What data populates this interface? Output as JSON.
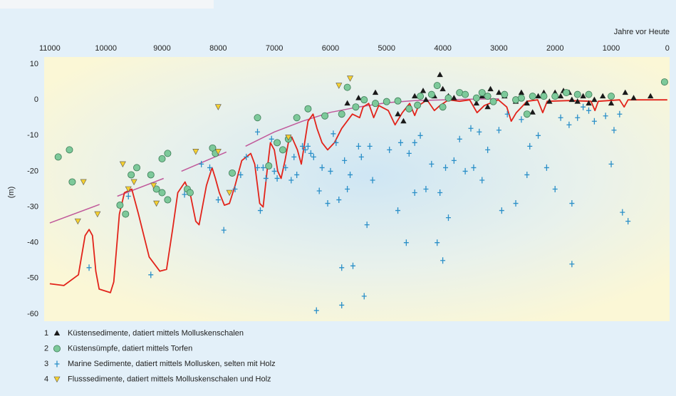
{
  "chart_data": {
    "type": "scatter",
    "x_axis_label": "Jahre vor Heute",
    "y_axis_label": "(m)",
    "xlim": [
      11100,
      -40
    ],
    "ylim": [
      -62,
      12
    ],
    "xticks": [
      11000,
      10000,
      9000,
      8000,
      7000,
      6000,
      5000,
      4000,
      3000,
      2000,
      1000,
      0
    ],
    "yticks": [
      10,
      0,
      -10,
      -20,
      -30,
      -40,
      -50,
      -60
    ],
    "grid": false,
    "legend": "bottom-left",
    "series": [
      {
        "type": "line",
        "color": "#c0589a",
        "x": [
          11000,
          10114,
          null,
          9797,
          8972,
          null,
          8655,
          7855,
          null,
          7513,
          7000,
          6500,
          6000,
          5500,
          5000,
          4500,
          4000,
          3500,
          3000
        ],
        "values": [
          -34.5,
          -29.3,
          null,
          -27,
          -22,
          null,
          -20,
          -14.6,
          null,
          -13,
          -9,
          -6,
          -3.5,
          -2,
          -0.8,
          -0.2,
          0,
          0.2,
          0.3
        ]
      },
      {
        "type": "line",
        "color": "#e2231a",
        "x": [
          11000,
          10750,
          10490,
          10370,
          10300,
          10240,
          10180,
          10120,
          9920,
          9860,
          9760,
          9670,
          9540,
          9420,
          9230,
          9040,
          8920,
          8810,
          8720,
          8590,
          8490,
          8400,
          8340,
          8210,
          8110,
          8050,
          7980,
          7890,
          7800,
          7700,
          7580,
          7420,
          7350,
          7260,
          7200,
          7130,
          7070,
          7000,
          6940,
          6880,
          6810,
          6750,
          6690,
          6590,
          6520,
          6460,
          6400,
          6310,
          6240,
          6150,
          6050,
          5930,
          5800,
          5610,
          5480,
          5420,
          5320,
          5230,
          5140,
          4970,
          4850,
          4720,
          4590,
          4500,
          4430,
          4280,
          4150,
          4050,
          3900,
          3700,
          3520,
          3390,
          3260,
          3010,
          2860,
          2780,
          2690,
          2500,
          2310,
          2220,
          2140,
          1740,
          1360,
          1290,
          1230,
          850,
          770,
          700,
          0
        ],
        "values": [
          -51.5,
          -52,
          -49,
          -38,
          -36.3,
          -38,
          -48,
          -53,
          -54,
          -51,
          -32,
          -26,
          -25,
          -32,
          -44,
          -48,
          -47.5,
          -36,
          -26,
          -23,
          -27,
          -34,
          -35,
          -24,
          -19,
          -22,
          -26,
          -29.5,
          -29,
          -24,
          -17,
          -15,
          -18,
          -29,
          -30,
          -20,
          -12,
          -14,
          -20,
          -22,
          -17,
          -12,
          -10.4,
          -14,
          -18,
          -12,
          -6,
          -4,
          -8,
          -12,
          -14,
          -12,
          -8,
          -4,
          -5,
          -2,
          -1,
          -5,
          -1.6,
          -3,
          -7,
          -3.6,
          -1,
          -4.4,
          -1.6,
          0,
          -3,
          -1.6,
          0,
          -0.4,
          0,
          -3.6,
          -1.6,
          0,
          -2,
          -6,
          -3.6,
          -0.4,
          0,
          -3.6,
          -0.4,
          -0.2,
          -0.4,
          -3,
          -0.4,
          0,
          -2,
          0,
          0
        ]
      },
      {
        "type": "scatter",
        "marker": "triangle",
        "color": "#1a1a1a",
        "label": "1",
        "name": "Küstensedimente, datiert mittels Molluskenschalen",
        "x": [
          5700,
          5500,
          5200,
          4800,
          4700,
          4500,
          4350,
          4300,
          4150,
          4050,
          4000,
          3900,
          3800,
          3600,
          3400,
          3300,
          3200,
          3150,
          3000,
          2900,
          2700,
          2600,
          2500,
          2400,
          2300,
          2200,
          2100,
          2000,
          1900,
          1850,
          1750,
          1700,
          1600,
          1500,
          1400,
          1300,
          1150,
          1000,
          750,
          600,
          300
        ],
        "values": [
          -1,
          0.5,
          2,
          -4,
          -6,
          1,
          2.5,
          0,
          1,
          7,
          3,
          1,
          0.5,
          1.5,
          -1,
          1,
          -2,
          3,
          2,
          1,
          -0.5,
          2,
          -1,
          -3.5,
          1,
          2,
          -0.5,
          2,
          1,
          2.5,
          2,
          0,
          -0.5,
          1,
          -1,
          0,
          1,
          -1,
          2,
          0.5,
          1
        ]
      },
      {
        "type": "scatter",
        "marker": "circle",
        "color": "#7dc99a",
        "label": "2",
        "name": "Küstensümpfe, datiert mittels Torfen",
        "x": [
          10850,
          10650,
          10600,
          9750,
          9650,
          9550,
          9450,
          9200,
          9100,
          9000,
          9000,
          8900,
          8900,
          8550,
          8500,
          8100,
          8050,
          7750,
          7300,
          7100,
          6950,
          6850,
          6750,
          6600,
          6400,
          6100,
          5800,
          5700,
          5550,
          5400,
          5200,
          5000,
          4800,
          4600,
          4450,
          4400,
          4200,
          4100,
          4000,
          3900,
          3700,
          3600,
          3400,
          3300,
          3200,
          3100,
          2900,
          2700,
          2600,
          2500,
          2400,
          2200,
          2000,
          1800,
          1600,
          1400,
          1000,
          50
        ],
        "values": [
          -16,
          -14,
          -23,
          -29.5,
          -32,
          -21,
          -19,
          -21,
          -25,
          -16.5,
          -26,
          -28,
          -15,
          -25,
          -26,
          -13.5,
          -15,
          -20.5,
          -5,
          -18.5,
          -12,
          -14,
          -11,
          -5,
          -2.5,
          -4.5,
          -4,
          3.5,
          -2,
          0,
          -1,
          -0.5,
          -0.3,
          -2.5,
          -1.5,
          1,
          1.5,
          4,
          -2,
          0.5,
          2,
          1.5,
          0.5,
          2,
          1,
          -0.5,
          1.5,
          0,
          0.5,
          -4,
          1,
          1,
          1,
          2,
          1.5,
          1.5,
          1,
          5
        ]
      },
      {
        "type": "scatter",
        "marker": "plus",
        "color": "#2a8fc8",
        "label": "3",
        "name": "Marine Sedimente, datiert mittels Mollusken, selten mit Holz",
        "x": [
          10300,
          9200,
          9600,
          8600,
          8300,
          8150,
          8000,
          7900,
          7700,
          7600,
          7500,
          7300,
          7300,
          7250,
          7200,
          7150,
          7050,
          7000,
          6950,
          6800,
          6700,
          6650,
          6600,
          6500,
          6450,
          6400,
          6350,
          6300,
          6200,
          6150,
          6050,
          6000,
          5950,
          5900,
          5850,
          5800,
          5750,
          5700,
          5650,
          5600,
          5500,
          5450,
          5400,
          5350,
          5300,
          5250,
          6250,
          5800,
          4950,
          4800,
          4750,
          4650,
          4600,
          4500,
          4400,
          4300,
          4200,
          4100,
          4050,
          4000,
          3950,
          3900,
          3800,
          3700,
          3600,
          3500,
          3450,
          3350,
          3300,
          3200,
          3000,
          2950,
          2850,
          2700,
          2600,
          2500,
          2450,
          2300,
          2150,
          2000,
          1900,
          1750,
          1700,
          1700,
          1600,
          1500,
          1400,
          1300,
          1100,
          1000,
          950,
          800,
          700,
          850,
          4500
        ],
        "values": [
          -47,
          -49,
          -27,
          -26.5,
          -18,
          -19,
          -28,
          -36.5,
          -25,
          -21,
          -16,
          -9,
          -19,
          -31,
          -19,
          -22,
          -11,
          -20,
          -22,
          -19,
          -22.5,
          -16,
          -21,
          -13,
          -14,
          -13,
          -15,
          -16,
          -25.5,
          -19,
          -29,
          -20,
          -9.5,
          -12,
          -28,
          -47,
          -17,
          -25,
          -21,
          -46.5,
          -13,
          -16,
          -55,
          -35,
          -13,
          -22.5,
          -59,
          -57.5,
          -14,
          -31,
          -12,
          -40,
          -15,
          -12,
          -10,
          -25,
          -18,
          -40,
          -26,
          -45,
          -19,
          -33,
          -17,
          -11,
          -20,
          -8,
          -19,
          -9,
          -22.5,
          -14,
          -8.5,
          -31,
          -4,
          -29,
          -5.5,
          -21,
          -13,
          -10,
          -19,
          -25,
          -5,
          -7,
          -29,
          -46,
          -5,
          -2,
          -3,
          -6,
          -4.5,
          -18,
          -8.5,
          -31.5,
          -34,
          -4,
          -26
        ]
      },
      {
        "type": "scatter",
        "marker": "triangle-down",
        "color": "#f5d030",
        "label": "4",
        "name": "Flusssedimente, datiert mittels Molluskenschalen und Holz",
        "x": [
          10500,
          10400,
          10150,
          9700,
          9600,
          9500,
          9150,
          9100,
          8400,
          8000,
          7800,
          8000,
          6750,
          5850,
          5650
        ],
        "values": [
          -34,
          -23,
          -32,
          -18,
          -25,
          -23,
          -24,
          -29,
          -14.5,
          -14.5,
          -26,
          -2,
          -10.5,
          4,
          6
        ]
      }
    ]
  }
}
